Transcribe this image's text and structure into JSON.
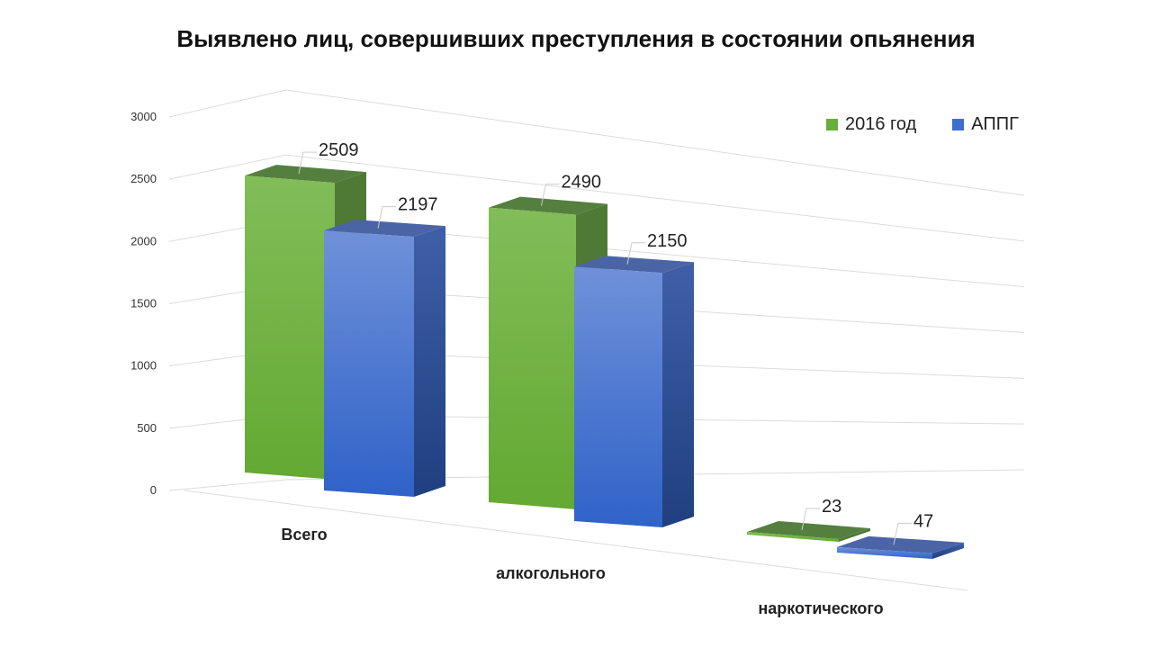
{
  "chart_data": {
    "type": "bar",
    "title": "Выявлено лиц, совершивших преступления в состоянии опьянения",
    "categories": [
      "Всего",
      "алкогольного",
      "наркотического"
    ],
    "series": [
      {
        "name": "2016 год",
        "values": [
          2509,
          2490,
          23
        ],
        "color": "#6aae3c"
      },
      {
        "name": "АППГ",
        "values": [
          2197,
          2150,
          47
        ],
        "color": "#3e6fcf"
      }
    ],
    "yticks": [
      "0",
      "500",
      "1000",
      "1500",
      "2000",
      "2500",
      "3000"
    ],
    "ylim": [
      0,
      3000
    ],
    "grid": true,
    "legend": "top-right",
    "style": "3d-clustered-column"
  }
}
